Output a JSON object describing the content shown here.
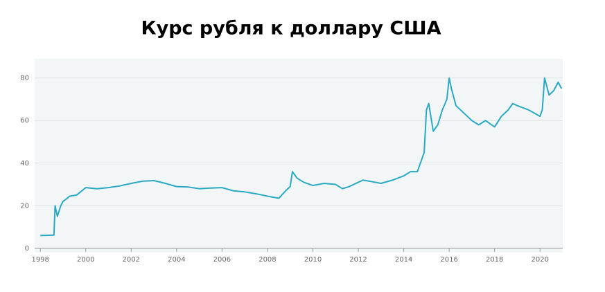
{
  "chart_data": {
    "type": "line",
    "title": "Курс рубля к доллару США",
    "x": [
      1998.0,
      1998.6,
      1998.65,
      1998.75,
      1998.9,
      1999.0,
      1999.3,
      1999.6,
      2000.0,
      2000.5,
      2001.0,
      2001.5,
      2002.0,
      2002.5,
      2003.0,
      2003.5,
      2004.0,
      2004.5,
      2005.0,
      2005.5,
      2006.0,
      2006.5,
      2007.0,
      2007.5,
      2008.0,
      2008.5,
      2008.8,
      2009.0,
      2009.1,
      2009.3,
      2009.6,
      2010.0,
      2010.5,
      2011.0,
      2011.3,
      2011.6,
      2012.0,
      2012.2,
      2012.5,
      2013.0,
      2013.5,
      2014.0,
      2014.3,
      2014.6,
      2014.9,
      2015.0,
      2015.1,
      2015.3,
      2015.5,
      2015.7,
      2015.9,
      2016.0,
      2016.1,
      2016.3,
      2016.6,
      2017.0,
      2017.3,
      2017.6,
      2018.0,
      2018.3,
      2018.6,
      2018.8,
      2019.0,
      2019.5,
      2020.0,
      2020.1,
      2020.2,
      2020.4,
      2020.6,
      2020.8,
      2020.95
    ],
    "series": [
      {
        "color": "#2aa9c4",
        "values": [
          6,
          6.2,
          20,
          15,
          20,
          22,
          24.5,
          25,
          28.5,
          28,
          28.5,
          29.3,
          30.5,
          31.5,
          31.8,
          30.5,
          29,
          28.8,
          28,
          28.3,
          28.5,
          27,
          26.5,
          25.6,
          24.5,
          23.5,
          27,
          29,
          36,
          33,
          31,
          29.5,
          30.5,
          30,
          28,
          29,
          31,
          32,
          31.5,
          30.5,
          32,
          34,
          36,
          36,
          45,
          65,
          68,
          55,
          58,
          65,
          70,
          80,
          75,
          67,
          64,
          60,
          58,
          60,
          57,
          62,
          65,
          68,
          67,
          65,
          62,
          65,
          80,
          72,
          74,
          78,
          75
        ]
      }
    ],
    "xlim": [
      1997.75,
      2021.0
    ],
    "ylim": [
      -2,
      89
    ],
    "xticks": [
      1998,
      2000,
      2002,
      2004,
      2006,
      2008,
      2010,
      2012,
      2014,
      2016,
      2018,
      2020
    ],
    "yticks": [
      0,
      20,
      40,
      60,
      80
    ],
    "grid": true
  }
}
